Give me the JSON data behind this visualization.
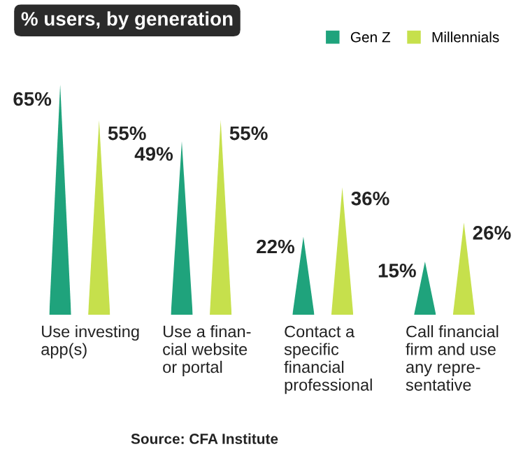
{
  "chart_data": {
    "type": "bar",
    "title": "% users, by generation",
    "categories": [
      "Use investing\napp(s)",
      "Use a finan-\ncial website\nor portal",
      "Contact a\nspecific\nfinancial\nprofessional",
      "Call financial\nfirm and use\nany repre-\nsentative"
    ],
    "series": [
      {
        "name": "Gen Z",
        "color": "#1fa37c",
        "values": [
          65,
          49,
          22,
          15
        ],
        "value_labels": [
          "65%",
          "49%",
          "22%",
          "15%"
        ]
      },
      {
        "name": "Millennials",
        "color": "#c6e04c",
        "values": [
          55,
          55,
          36,
          26
        ],
        "value_labels": [
          "55%",
          "55%",
          "36%",
          "26%"
        ]
      }
    ],
    "legend": "top right",
    "annotations": [
      "Source: CFA Institute"
    ]
  }
}
